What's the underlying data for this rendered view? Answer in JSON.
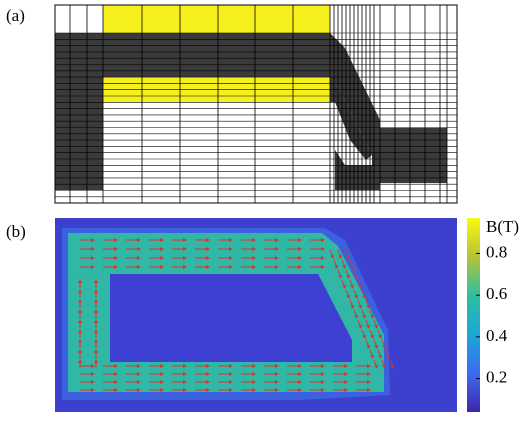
{
  "panel_a": {
    "label": "(a)"
  },
  "panel_b": {
    "label": "(b)",
    "colorbar": {
      "label": "B(T)",
      "lim": [
        0.04,
        0.97
      ],
      "ticks": [
        0.2,
        0.4,
        0.6,
        0.8
      ]
    }
  }
}
